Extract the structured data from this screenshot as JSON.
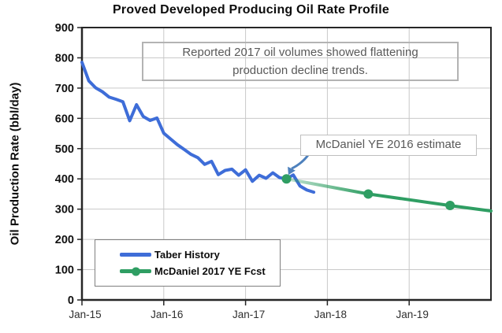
{
  "chart": {
    "title": "Proved Developed Producing Oil Rate Profile",
    "y_axis_title": "Oil Production Rate (bbl/day)"
  },
  "annotations": {
    "note": {
      "line1": "Reported 2017 oil volumes showed flattening",
      "line2": "production decline trends."
    },
    "callout": {
      "text": "McDaniel YE 2016 estimate"
    }
  },
  "colors": {
    "taber_blue": "#3e6dd8",
    "mcdaniel_green": "#2f9e63",
    "arrow_blue": "#4e81bd",
    "gridline": "#c9c9c9",
    "axis": "#262626",
    "note_text": "#595959"
  },
  "chart_data": {
    "type": "line",
    "title": "Proved Developed Producing Oil Rate Profile",
    "xlabel": "",
    "ylabel": "Oil Production Rate (bbl/day)",
    "x_unit": "months since Jan-2015",
    "xlim": [
      0,
      60
    ],
    "ylim": [
      0,
      900
    ],
    "grid": true,
    "legend_position": "inside lower-left",
    "yticks": [
      0,
      100,
      200,
      300,
      400,
      500,
      600,
      700,
      800,
      900
    ],
    "xticks": [
      {
        "m": 0,
        "label": "Jan-15"
      },
      {
        "m": 12,
        "label": "Jan-16"
      },
      {
        "m": 24,
        "label": "Jan-17"
      },
      {
        "m": 36,
        "label": "Jan-18"
      },
      {
        "m": 48,
        "label": "Jan-19"
      }
    ],
    "series": [
      {
        "name": "Taber History",
        "color": "#3e6dd8",
        "line_width": 4,
        "x_months": [
          0,
          1,
          2,
          3,
          4,
          5,
          6,
          7,
          8,
          9,
          10,
          11,
          12,
          13,
          14,
          15,
          16,
          17,
          18,
          19,
          20,
          21,
          22,
          23,
          24,
          25,
          26,
          27,
          28,
          29,
          30,
          31,
          32,
          33,
          34
        ],
        "values": [
          785,
          724,
          701,
          688,
          670,
          663,
          655,
          592,
          645,
          606,
          593,
          601,
          551,
          532,
          513,
          497,
          481,
          470,
          448,
          458,
          414,
          428,
          432,
          412,
          430,
          392,
          412,
          402,
          420,
          404,
          400,
          413,
          376,
          363,
          356
        ]
      },
      {
        "name": "McDaniel 2017 YE Fcst",
        "color": "#2f9e63",
        "line_width": 4,
        "x_months": [
          30,
          42,
          54,
          60
        ],
        "values": [
          400,
          350,
          312,
          294
        ],
        "marker_indices": [
          0,
          1,
          2
        ],
        "marker_radius": 6,
        "fade_in_start_month": 30,
        "fade_in_end_month": 42,
        "fade_start_opacity": 0.28
      }
    ],
    "chart_annotations": [
      {
        "type": "textbox",
        "text": "Reported 2017 oil volumes showed flattening production decline trends."
      },
      {
        "type": "callout",
        "text": "McDaniel YE 2016 estimate",
        "points_to": {
          "series": "McDaniel 2017 YE Fcst",
          "x_month": 30,
          "value": 400
        },
        "arrow_color": "#4e81bd"
      }
    ]
  }
}
